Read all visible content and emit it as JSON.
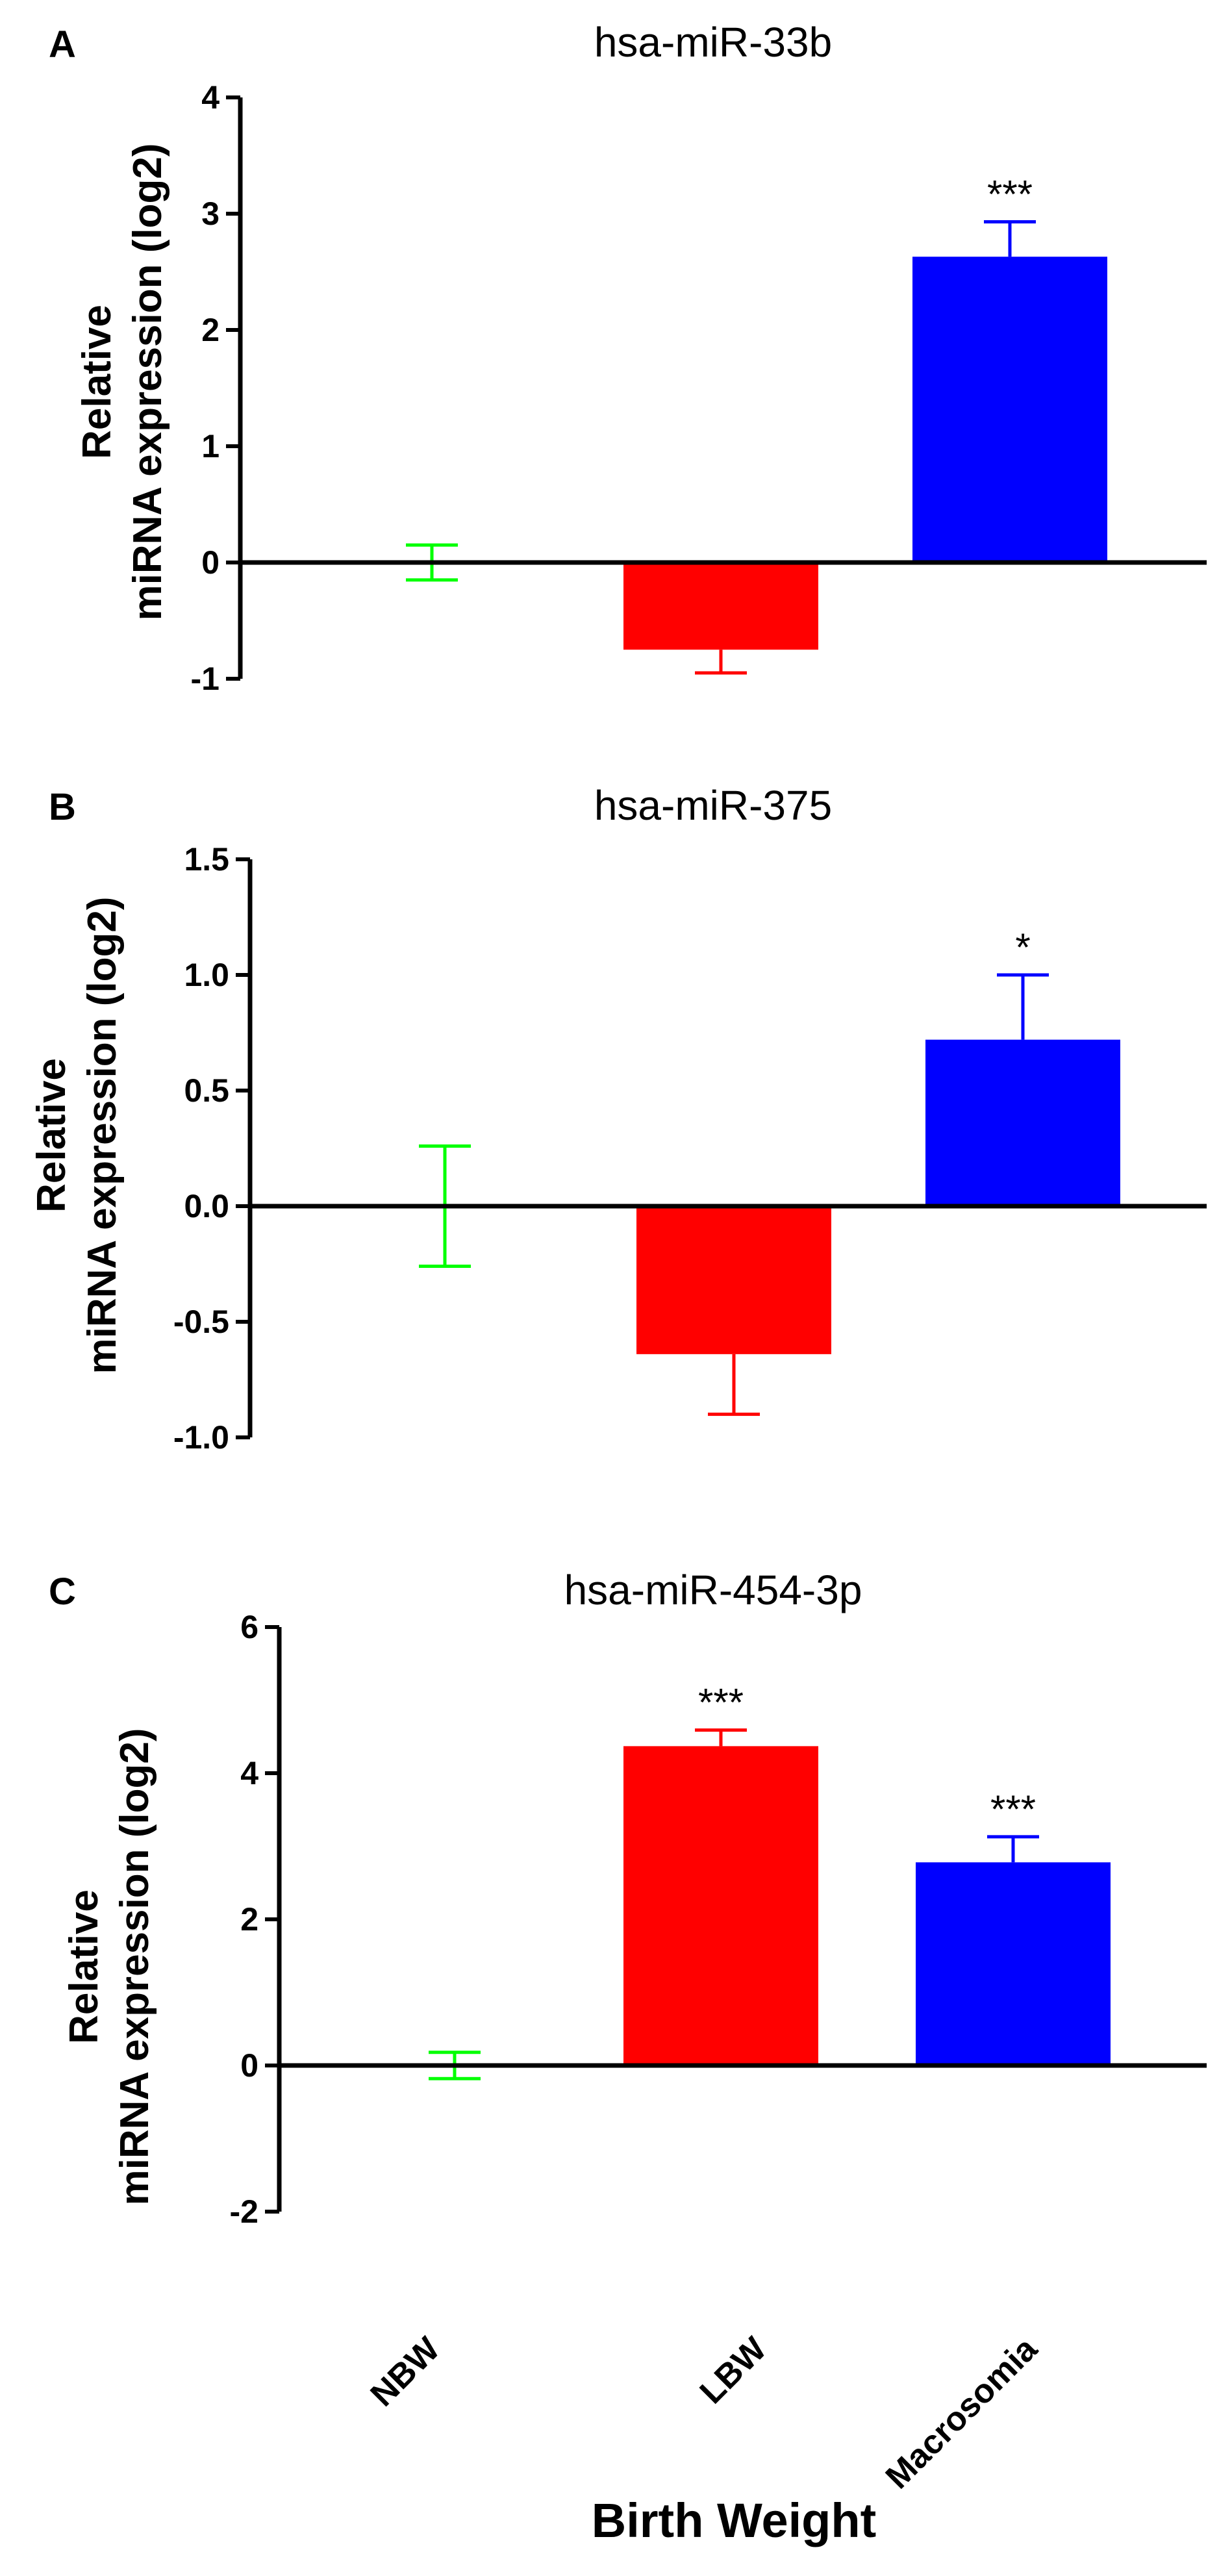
{
  "colors": {
    "NBW": "#00ff00",
    "LBW": "#ff0000",
    "Macrosomia": "#0000ff",
    "axis": "#000000"
  },
  "x_axis_label": "Birth Weight",
  "categories": [
    "NBW",
    "LBW",
    "Macrosomia"
  ],
  "chart_data": [
    {
      "type": "bar",
      "panel": "A",
      "title": "hsa-miR-33b",
      "ylabel": [
        "Relative",
        "miRNA expression (log2)"
      ],
      "xlabel": "Birth Weight",
      "categories": [
        "NBW",
        "LBW",
        "Macrosomia"
      ],
      "values": [
        0,
        -0.75,
        2.63
      ],
      "errors": [
        0.15,
        0.2,
        0.3
      ],
      "significance": [
        "",
        "",
        "***"
      ],
      "ylim": [
        -1,
        4
      ],
      "yticks": [
        -1,
        0,
        1,
        2,
        3,
        4
      ],
      "ytick_labels": [
        "-1",
        "0",
        "1",
        "2",
        "3",
        "4"
      ]
    },
    {
      "type": "bar",
      "panel": "B",
      "title": "hsa-miR-375",
      "ylabel": [
        "Relative",
        "miRNA expression (log2)"
      ],
      "xlabel": "Birth Weight",
      "categories": [
        "NBW",
        "LBW",
        "Macrosomia"
      ],
      "values": [
        0,
        -0.64,
        0.72
      ],
      "errors": [
        0.26,
        0.26,
        0.28
      ],
      "significance": [
        "",
        "",
        "*"
      ],
      "ylim": [
        -1.0,
        1.5
      ],
      "yticks": [
        -1.0,
        -0.5,
        0.0,
        0.5,
        1.0,
        1.5
      ],
      "ytick_labels": [
        "-1.0",
        "-0.5",
        "0.0",
        "0.5",
        "1.0",
        "1.5"
      ]
    },
    {
      "type": "bar",
      "panel": "C",
      "title": "hsa-miR-454-3p",
      "ylabel": [
        "Relative",
        "miRNA expression (log2)"
      ],
      "xlabel": "Birth Weight",
      "categories": [
        "NBW",
        "LBW",
        "Macrosomia"
      ],
      "values": [
        0,
        4.37,
        2.78
      ],
      "errors": [
        0.18,
        0.22,
        0.35
      ],
      "significance": [
        "",
        "***",
        "***"
      ],
      "ylim": [
        -2,
        6
      ],
      "yticks": [
        -2,
        0,
        2,
        4,
        6
      ],
      "ytick_labels": [
        "-2",
        "0",
        "2",
        "4",
        "6"
      ]
    }
  ]
}
